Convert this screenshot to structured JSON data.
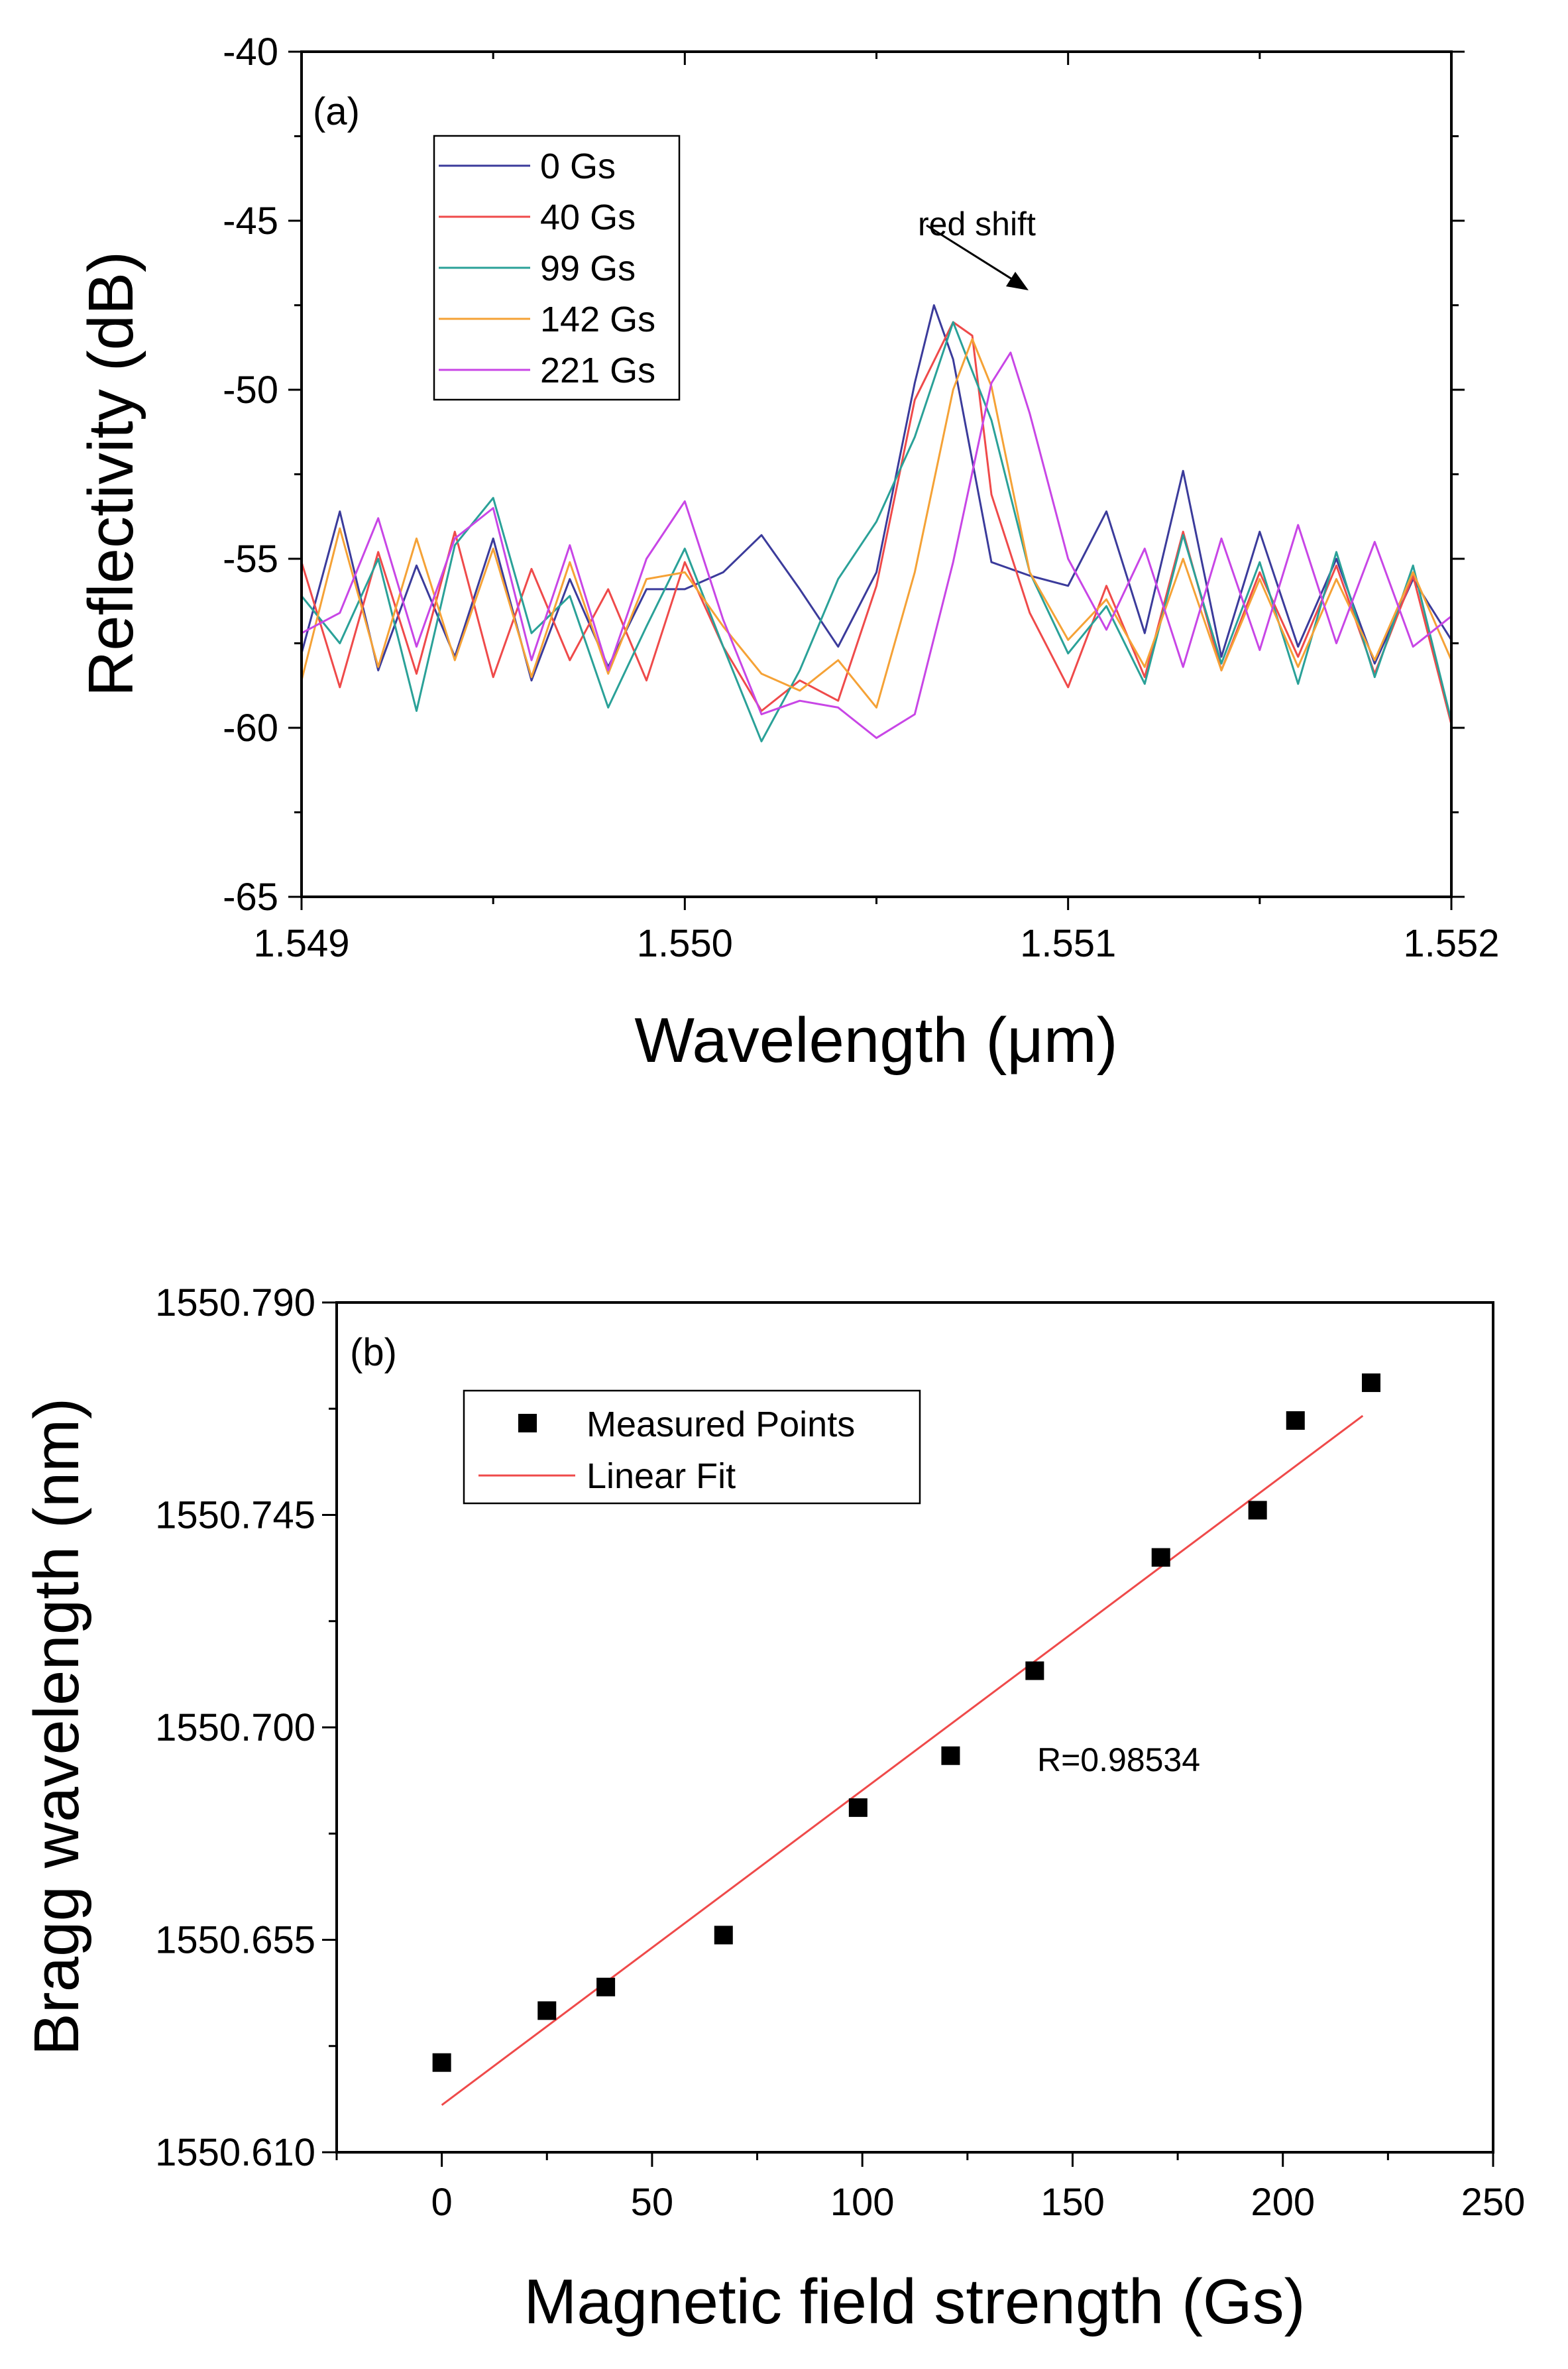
{
  "chart_data": [
    {
      "type": "line",
      "panel_label": "(a)",
      "xlabel": "Wavelength (μm)",
      "ylabel": "Reflectivity (dB)",
      "xlim": [
        1.549,
        1.552
      ],
      "ylim": [
        -65,
        -40
      ],
      "x_ticks": [
        1.549,
        1.55,
        1.551,
        1.552
      ],
      "x_tick_labels": [
        "1.549",
        "1.550",
        "1.551",
        "1.552"
      ],
      "y_ticks": [
        -65,
        -60,
        -55,
        -50,
        -45,
        -40
      ],
      "y_tick_labels": [
        "-65",
        "-60",
        "-55",
        "-50",
        "-45",
        "-40"
      ],
      "legend_position": "top-left",
      "annotation": "red shift",
      "series": [
        {
          "name": "0 Gs",
          "color": "#3b3b9b",
          "x": [
            1.549,
            1.5491,
            1.5492,
            1.5493,
            1.5494,
            1.5495,
            1.5496,
            1.5497,
            1.5498,
            1.5499,
            1.55,
            1.5501,
            1.5502,
            1.5503,
            1.5504,
            1.5505,
            1.5506,
            1.55065,
            1.5507,
            1.5508,
            1.5509,
            1.551,
            1.5511,
            1.5512,
            1.5513,
            1.5514,
            1.5515,
            1.5516,
            1.5517,
            1.5518,
            1.5519,
            1.552
          ],
          "y": [
            -57.8,
            -53.6,
            -58.3,
            -55.2,
            -57.9,
            -54.4,
            -58.6,
            -55.6,
            -58.2,
            -55.9,
            -55.9,
            -55.4,
            -54.3,
            -55.9,
            -57.6,
            -55.4,
            -49.8,
            -47.5,
            -49.1,
            -55.1,
            -55.5,
            -55.8,
            -53.6,
            -57.2,
            -52.4,
            -57.9,
            -54.2,
            -57.6,
            -55.0,
            -58.1,
            -55.6,
            -57.4
          ]
        },
        {
          "name": "40 Gs",
          "color": "#ef4a4a",
          "x": [
            1.549,
            1.5491,
            1.5492,
            1.5493,
            1.5494,
            1.5495,
            1.5496,
            1.5497,
            1.5498,
            1.5499,
            1.55,
            1.5501,
            1.5502,
            1.5503,
            1.5504,
            1.5505,
            1.5506,
            1.5507,
            1.55075,
            1.5508,
            1.5509,
            1.551,
            1.5511,
            1.5512,
            1.5513,
            1.5514,
            1.5515,
            1.5516,
            1.5517,
            1.5518,
            1.5519,
            1.552
          ],
          "y": [
            -55.1,
            -58.8,
            -54.8,
            -58.4,
            -54.2,
            -58.5,
            -55.3,
            -58.0,
            -55.9,
            -58.6,
            -55.1,
            -57.6,
            -59.5,
            -58.6,
            -59.2,
            -55.8,
            -50.3,
            -48.0,
            -48.4,
            -53.1,
            -56.6,
            -58.8,
            -55.8,
            -58.5,
            -54.2,
            -58.3,
            -55.4,
            -57.9,
            -55.2,
            -58.4,
            -55.5,
            -59.9
          ]
        },
        {
          "name": "99 Gs",
          "color": "#2aa198",
          "x": [
            1.549,
            1.5491,
            1.5492,
            1.5493,
            1.5494,
            1.5495,
            1.5496,
            1.5497,
            1.5498,
            1.5499,
            1.55,
            1.5501,
            1.5502,
            1.5503,
            1.5504,
            1.5505,
            1.5506,
            1.5507,
            1.5508,
            1.5509,
            1.551,
            1.5511,
            1.5512,
            1.5513,
            1.5514,
            1.5515,
            1.5516,
            1.5517,
            1.5518,
            1.5519,
            1.552
          ],
          "y": [
            -56.1,
            -57.5,
            -55.0,
            -59.5,
            -54.6,
            -53.2,
            -57.2,
            -56.1,
            -59.4,
            -57.0,
            -54.7,
            -57.6,
            -60.4,
            -58.3,
            -55.6,
            -53.9,
            -51.4,
            -48.0,
            -50.9,
            -55.4,
            -57.8,
            -56.4,
            -58.7,
            -54.3,
            -58.1,
            -55.1,
            -58.7,
            -54.8,
            -58.5,
            -55.2,
            -59.8
          ]
        },
        {
          "name": "142 Gs",
          "color": "#f5a236",
          "x": [
            1.549,
            1.5491,
            1.5492,
            1.5493,
            1.5494,
            1.5495,
            1.5496,
            1.5497,
            1.5498,
            1.5499,
            1.55,
            1.5501,
            1.5502,
            1.5503,
            1.5504,
            1.5505,
            1.5506,
            1.5507,
            1.55075,
            1.5508,
            1.5509,
            1.551,
            1.5511,
            1.5512,
            1.5513,
            1.5514,
            1.5515,
            1.5516,
            1.5517,
            1.5518,
            1.5519,
            1.552
          ],
          "y": [
            -58.6,
            -54.1,
            -58.2,
            -54.4,
            -58.0,
            -54.7,
            -58.5,
            -55.1,
            -58.4,
            -55.6,
            -55.4,
            -57.0,
            -58.4,
            -58.9,
            -58.0,
            -59.4,
            -55.4,
            -50.0,
            -48.5,
            -49.9,
            -55.4,
            -57.4,
            -56.2,
            -58.2,
            -55.0,
            -58.3,
            -55.6,
            -58.2,
            -55.6,
            -58.0,
            -55.4,
            -58.0
          ]
        },
        {
          "name": "221 Gs",
          "color": "#c846e6",
          "x": [
            1.549,
            1.5491,
            1.5492,
            1.5493,
            1.5494,
            1.5495,
            1.5496,
            1.5497,
            1.5498,
            1.5499,
            1.55,
            1.5501,
            1.5502,
            1.5503,
            1.5504,
            1.5505,
            1.5506,
            1.5507,
            1.5508,
            1.55085,
            1.5509,
            1.551,
            1.5511,
            1.5512,
            1.5513,
            1.5514,
            1.5515,
            1.5516,
            1.5517,
            1.5518,
            1.5519,
            1.552
          ],
          "y": [
            -57.2,
            -56.6,
            -53.8,
            -57.6,
            -54.4,
            -53.5,
            -58.0,
            -54.6,
            -58.3,
            -55.0,
            -53.3,
            -56.8,
            -59.6,
            -59.2,
            -59.4,
            -60.3,
            -59.6,
            -55.1,
            -49.8,
            -48.9,
            -50.7,
            -55.0,
            -57.1,
            -54.7,
            -58.2,
            -54.4,
            -57.7,
            -54.0,
            -57.5,
            -54.5,
            -57.6,
            -56.7
          ]
        }
      ]
    },
    {
      "type": "scatter",
      "panel_label": "(b)",
      "xlabel": "Magnetic field strength (Gs)",
      "ylabel": "Bragg wavelength (nm)",
      "xlim": [
        -25,
        250
      ],
      "ylim": [
        1550.61,
        1550.79
      ],
      "x_ticks": [
        0,
        50,
        100,
        150,
        200,
        250
      ],
      "x_tick_labels": [
        "0",
        "50",
        "100",
        "150",
        "200",
        "250"
      ],
      "y_ticks": [
        1550.61,
        1550.655,
        1550.7,
        1550.745,
        1550.79
      ],
      "y_tick_labels": [
        "1550.610",
        "1550.655",
        "1550.700",
        "1550.745",
        "1550.790"
      ],
      "legend_position": "top-left",
      "annotation": "R=0.98534",
      "series": [
        {
          "name": "Measured Points",
          "color": "#000000",
          "x": [
            0,
            25,
            39,
            67,
            99,
            121,
            141,
            171,
            194,
            203,
            221
          ],
          "y": [
            1550.629,
            1550.64,
            1550.645,
            1550.656,
            1550.683,
            1550.694,
            1550.712,
            1550.736,
            1550.746,
            1550.765,
            1550.773
          ]
        },
        {
          "name": "Linear Fit",
          "color": "#ef4a4a",
          "x": [
            0,
            219
          ],
          "y": [
            1550.62,
            1550.766
          ]
        }
      ]
    }
  ]
}
